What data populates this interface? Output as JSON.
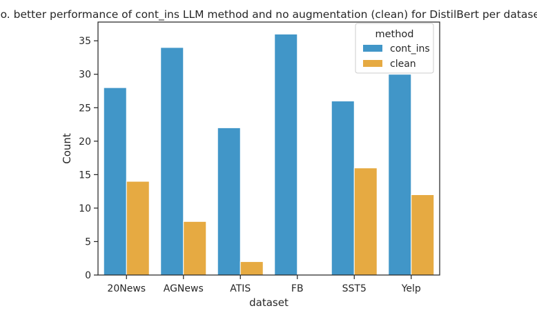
{
  "chart_data": {
    "type": "bar",
    "title": "No. better performance of cont_ins LLM method and no augmentation (clean) for DistilBert per dataset.",
    "xlabel": "dataset",
    "ylabel": "Count",
    "categories": [
      "20News",
      "AGNews",
      "ATIS",
      "FB",
      "SST5",
      "Yelp"
    ],
    "series": [
      {
        "name": "cont_ins",
        "color": "#4196c8",
        "values": [
          28,
          34,
          22,
          36,
          26,
          30
        ]
      },
      {
        "name": "clean",
        "color": "#e6aa42",
        "values": [
          14,
          8,
          2,
          0,
          16,
          12
        ]
      }
    ],
    "ylim": [
      0,
      37.8
    ],
    "yticks": [
      0,
      5,
      10,
      15,
      20,
      25,
      30,
      35
    ],
    "grid": false,
    "legend": {
      "title": "method",
      "position": "top-right"
    }
  }
}
